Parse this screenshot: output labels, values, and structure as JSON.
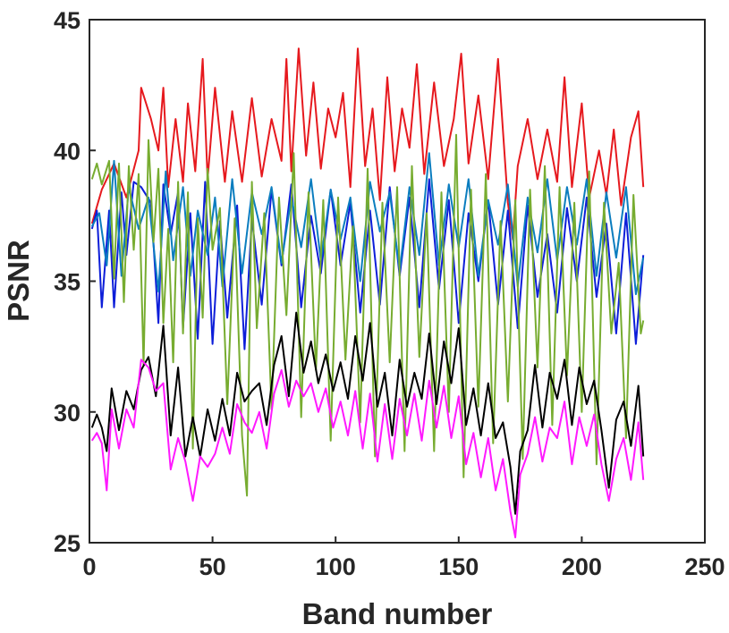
{
  "chart_data": {
    "type": "line",
    "title": "",
    "xlabel": "Band number",
    "ylabel": "PSNR",
    "xlim": [
      0,
      250
    ],
    "ylim": [
      25,
      45
    ],
    "xticks": [
      0,
      50,
      100,
      150,
      200,
      250
    ],
    "yticks": [
      25,
      30,
      35,
      40,
      45
    ],
    "grid": false,
    "legend": "none",
    "series": [
      {
        "color": "#e6191e",
        "x": [
          1,
          5,
          10,
          15,
          20,
          21,
          25,
          28,
          30,
          32,
          35,
          38,
          40,
          43,
          46,
          48,
          51,
          55,
          58,
          62,
          66,
          70,
          74,
          78,
          80,
          82,
          85,
          88,
          91,
          94,
          97,
          100,
          103,
          106,
          109,
          112,
          115,
          118,
          121,
          124,
          127,
          130,
          133,
          136,
          140,
          144,
          148,
          151,
          154,
          158,
          162,
          166,
          170,
          172,
          174,
          178,
          182,
          186,
          190,
          193,
          196,
          200,
          203,
          207,
          210,
          213,
          216,
          220,
          223,
          225
        ],
        "values": [
          37.2,
          38.5,
          39.5,
          38.2,
          40.0,
          42.4,
          41.2,
          40.0,
          42.4,
          38.6,
          41.2,
          38.8,
          41.8,
          39.2,
          43.5,
          38.9,
          42.4,
          38.8,
          41.5,
          38.8,
          42.0,
          39.0,
          41.2,
          39.6,
          43.5,
          39.2,
          43.9,
          39.8,
          42.6,
          39.3,
          41.6,
          40.5,
          42.2,
          38.6,
          43.9,
          39.4,
          41.6,
          38.1,
          42.8,
          39.2,
          41.6,
          40.1,
          43.3,
          39.1,
          42.6,
          39.4,
          41.2,
          43.7,
          39.5,
          42.1,
          38.9,
          43.5,
          38.0,
          36.6,
          39.4,
          41.2,
          38.9,
          40.8,
          38.8,
          42.8,
          38.6,
          41.8,
          38.2,
          40.0,
          38.3,
          40.8,
          37.9,
          40.5,
          41.5,
          38.6
        ]
      },
      {
        "color": "#0d1ed9",
        "x": [
          1,
          3,
          5,
          8,
          10,
          13,
          15,
          18,
          21,
          25,
          28,
          30,
          33,
          36,
          38,
          41,
          44,
          47,
          50,
          53,
          56,
          60,
          63,
          66,
          70,
          74,
          78,
          82,
          86,
          90,
          94,
          98,
          102,
          106,
          110,
          114,
          118,
          122,
          126,
          130,
          134,
          138,
          142,
          146,
          150,
          154,
          158,
          162,
          166,
          170,
          174,
          178,
          182,
          186,
          190,
          194,
          198,
          202,
          206,
          210,
          214,
          218,
          222,
          225
        ],
        "values": [
          37.0,
          37.7,
          34.0,
          37.7,
          34.0,
          38.4,
          36.0,
          38.8,
          38.6,
          38.0,
          33.4,
          38.7,
          36.8,
          38.4,
          33.2,
          37.6,
          32.8,
          38.8,
          32.6,
          37.3,
          33.6,
          37.9,
          32.4,
          37.4,
          34.1,
          38.5,
          35.6,
          38.7,
          34.0,
          37.5,
          35.3,
          38.5,
          35.6,
          38.0,
          33.8,
          37.7,
          34.1,
          38.6,
          35.2,
          38.2,
          34.0,
          38.9,
          34.7,
          38.1,
          33.4,
          37.6,
          35.0,
          38.1,
          34.1,
          37.7,
          33.2,
          37.9,
          34.4,
          36.8,
          33.8,
          37.8,
          35.0,
          38.2,
          34.4,
          37.2,
          33.0,
          37.6,
          32.6,
          36.0
        ]
      },
      {
        "color": "#0b7dbf",
        "x": [
          1,
          4,
          7,
          10,
          13,
          16,
          20,
          24,
          28,
          31,
          34,
          38,
          41,
          44,
          48,
          51,
          54,
          58,
          62,
          66,
          70,
          74,
          78,
          82,
          86,
          90,
          94,
          98,
          102,
          106,
          110,
          114,
          118,
          122,
          126,
          130,
          134,
          138,
          142,
          146,
          150,
          154,
          158,
          162,
          166,
          170,
          174,
          178,
          182,
          186,
          190,
          194,
          198,
          202,
          206,
          210,
          214,
          218,
          222,
          225
        ],
        "values": [
          37.1,
          37.6,
          35.6,
          39.6,
          35.2,
          38.6,
          37.0,
          38.2,
          34.6,
          39.2,
          35.8,
          38.6,
          35.2,
          37.7,
          36.0,
          38.2,
          34.8,
          38.9,
          35.3,
          38.4,
          36.8,
          38.6,
          35.7,
          38.2,
          36.3,
          38.9,
          35.8,
          38.5,
          36.6,
          38.2,
          35.0,
          38.8,
          36.9,
          38.4,
          35.4,
          38.6,
          36.0,
          39.9,
          35.6,
          38.7,
          36.3,
          38.9,
          35.2,
          38.1,
          36.4,
          38.7,
          34.8,
          38.2,
          36.1,
          38.9,
          35.8,
          38.6,
          36.4,
          38.9,
          35.2,
          38.4,
          35.9,
          38.6,
          34.5,
          35.9
        ]
      },
      {
        "color": "#77ac30",
        "x": [
          1,
          3,
          5,
          8,
          10,
          12,
          14,
          16,
          18,
          20,
          22,
          24,
          26,
          28,
          30,
          32,
          34,
          36,
          38,
          40,
          42,
          44,
          46,
          48,
          50,
          53,
          56,
          59,
          62,
          64,
          66,
          68,
          71,
          74,
          77,
          80,
          83,
          86,
          89,
          92,
          95,
          98,
          101,
          104,
          107,
          110,
          113,
          116,
          119,
          122,
          125,
          128,
          131,
          134,
          137,
          140,
          143,
          146,
          149,
          152,
          155,
          158,
          161,
          164,
          167,
          170,
          173,
          176,
          179,
          182,
          185,
          188,
          191,
          194,
          197,
          200,
          203,
          206,
          209,
          212,
          215,
          218,
          221,
          224,
          225
        ],
        "values": [
          38.9,
          39.5,
          38.7,
          39.6,
          35.1,
          39.5,
          34.2,
          39.4,
          36.2,
          39.1,
          31.8,
          40.4,
          36.5,
          39.3,
          33.4,
          37.0,
          31.9,
          38.8,
          33.0,
          38.4,
          28.6,
          37.4,
          33.6,
          39.3,
          36.2,
          37.8,
          30.3,
          37.4,
          29.1,
          26.8,
          38.8,
          33.2,
          37.6,
          30.1,
          38.2,
          33.7,
          39.9,
          29.8,
          38.4,
          31.6,
          38.1,
          28.9,
          38.2,
          32.0,
          37.1,
          29.6,
          39.3,
          28.3,
          38.0,
          31.9,
          38.6,
          28.5,
          39.4,
          32.1,
          37.6,
          28.5,
          38.4,
          30.0,
          40.6,
          27.5,
          38.5,
          30.2,
          39.1,
          28.8,
          37.3,
          30.4,
          38.1,
          28.2,
          38.5,
          31.7,
          39.4,
          29.5,
          38.6,
          31.4,
          38.0,
          30.0,
          39.2,
          28.0,
          38.0,
          33.0,
          35.7,
          29.0,
          38.3,
          33.0,
          33.5
        ]
      },
      {
        "color": "#000000",
        "x": [
          1,
          3,
          5,
          7,
          9,
          12,
          15,
          18,
          21,
          24,
          27,
          30,
          33,
          36,
          39,
          42,
          45,
          48,
          51,
          54,
          57,
          60,
          63,
          66,
          69,
          72,
          75,
          78,
          81,
          84,
          87,
          90,
          93,
          96,
          99,
          102,
          105,
          108,
          111,
          114,
          117,
          120,
          123,
          126,
          129,
          132,
          135,
          138,
          141,
          144,
          147,
          150,
          153,
          156,
          159,
          162,
          165,
          168,
          171,
          173,
          175,
          178,
          181,
          184,
          187,
          190,
          193,
          196,
          199,
          202,
          205,
          208,
          211,
          214,
          217,
          220,
          223,
          225
        ],
        "values": [
          29.4,
          29.9,
          29.4,
          28.5,
          30.9,
          29.3,
          30.8,
          30.1,
          31.6,
          32.1,
          30.6,
          33.3,
          29.1,
          31.7,
          28.3,
          29.8,
          28.3,
          30.1,
          28.9,
          30.5,
          29.1,
          31.5,
          30.4,
          30.8,
          31.1,
          29.5,
          31.8,
          32.9,
          30.6,
          33.8,
          31.5,
          32.7,
          31.1,
          32.2,
          30.8,
          31.9,
          30.5,
          32.9,
          31.2,
          33.4,
          30.2,
          31.5,
          29.1,
          32.0,
          30.2,
          31.5,
          30.5,
          33.0,
          30.3,
          32.7,
          31.1,
          33.2,
          29.5,
          30.9,
          29.1,
          31.1,
          29.0,
          29.6,
          27.9,
          26.1,
          28.5,
          29.3,
          31.8,
          29.4,
          31.5,
          30.5,
          32.0,
          29.5,
          31.7,
          30.3,
          31.2,
          29.3,
          27.1,
          29.7,
          30.4,
          28.7,
          31.0,
          28.3
        ]
      },
      {
        "color": "#ff19ff",
        "x": [
          1,
          3,
          5,
          7,
          9,
          12,
          15,
          18,
          21,
          24,
          27,
          30,
          33,
          36,
          39,
          42,
          45,
          48,
          51,
          54,
          57,
          60,
          63,
          66,
          69,
          72,
          75,
          78,
          81,
          84,
          87,
          90,
          93,
          96,
          99,
          102,
          105,
          108,
          111,
          114,
          117,
          120,
          123,
          126,
          129,
          132,
          135,
          138,
          141,
          144,
          147,
          150,
          153,
          156,
          159,
          162,
          165,
          168,
          171,
          173,
          175,
          178,
          181,
          184,
          187,
          190,
          193,
          196,
          199,
          202,
          205,
          208,
          211,
          214,
          217,
          220,
          223,
          225
        ],
        "values": [
          28.9,
          29.2,
          28.8,
          27.0,
          30.1,
          28.6,
          30.1,
          29.4,
          32.0,
          31.7,
          30.8,
          31.1,
          27.8,
          29.0,
          28.1,
          26.6,
          28.3,
          27.9,
          28.4,
          29.4,
          28.4,
          30.3,
          29.6,
          29.2,
          30.0,
          28.6,
          30.7,
          31.6,
          30.2,
          31.2,
          30.6,
          31.1,
          30.0,
          30.9,
          29.4,
          30.4,
          29.1,
          30.8,
          28.6,
          30.7,
          28.1,
          30.3,
          28.2,
          30.5,
          29.1,
          30.7,
          28.9,
          31.2,
          29.4,
          31.0,
          29.0,
          30.6,
          28.0,
          29.2,
          27.5,
          29.0,
          27.0,
          28.2,
          26.2,
          25.2,
          27.6,
          28.4,
          29.8,
          28.1,
          29.4,
          29.0,
          30.4,
          28.0,
          29.8,
          28.7,
          29.9,
          28.0,
          26.6,
          28.2,
          29.0,
          27.4,
          29.6,
          27.4
        ]
      }
    ]
  }
}
